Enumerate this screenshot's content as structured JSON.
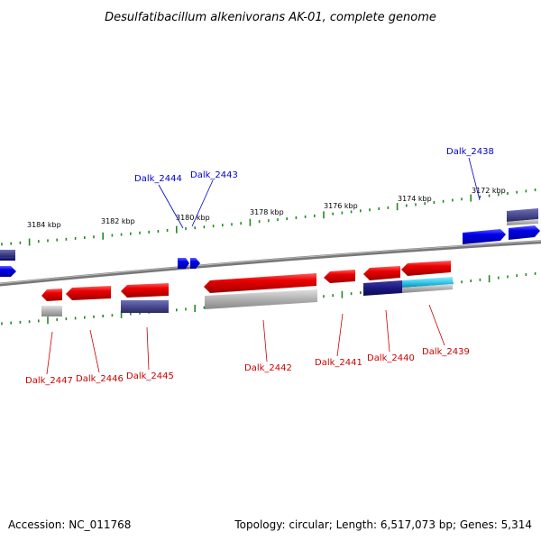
{
  "title": "Desulfatibacillum alkenivorans AK-01, complete genome",
  "footer": {
    "accession": "Accession: NC_011768",
    "summary": "Topology: circular; Length: 6,517,073 bp; Genes: 5,314"
  },
  "colors": {
    "forward_gene": "#0000ee",
    "reverse_gene": "#ee0000",
    "forward_label": "#0000cc",
    "reverse_label": "#cc0000",
    "navy_cds": "#1a1a80",
    "purple_cds": "#4a4a90",
    "cyan_cds": "#33ccee",
    "grey_cds": "#b0b0b0",
    "backbone": "#777777",
    "ticks": "#228822"
  },
  "kbp_labels": [
    "3184 kbp",
    "3182 kbp",
    "3180 kbp",
    "3178 kbp",
    "3176 kbp",
    "3174 kbp",
    "3172 kbp"
  ],
  "forward_labels": [
    "Dalk_2444",
    "Dalk_2443",
    "Dalk_2438"
  ],
  "reverse_labels": [
    "Dalk_2447",
    "Dalk_2446",
    "Dalk_2445",
    "Dalk_2442",
    "Dalk_2441",
    "Dalk_2440",
    "Dalk_2439"
  ]
}
